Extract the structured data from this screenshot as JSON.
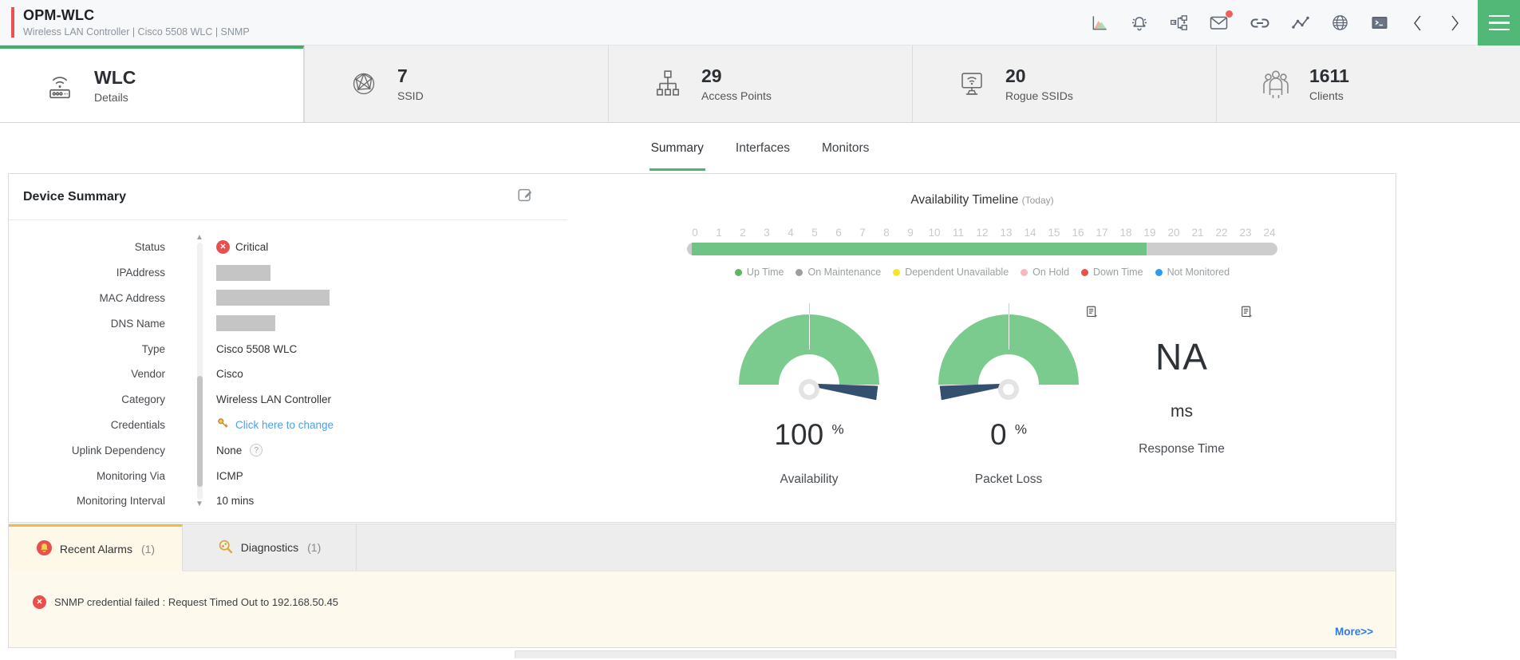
{
  "header": {
    "title": "OPM-WLC",
    "subtitle": "Wireless LAN Controller | Cisco 5508 WLC  | SNMP",
    "toolbar_icons": [
      "area-chart",
      "alarms-bell",
      "workflow",
      "inbox-mail",
      "connect-link",
      "performance-graph",
      "web-globe",
      "terminal",
      "previous-device",
      "next-device",
      "menu"
    ],
    "mail_badge": true,
    "accent_green": "#52b878",
    "accent_red": "#e85352"
  },
  "cards": [
    {
      "icon": "wlc-device-icon",
      "value": "WLC",
      "label": "Details",
      "active": true
    },
    {
      "icon": "ssid-globe-icon",
      "value": "7",
      "label": "SSID"
    },
    {
      "icon": "access-points-tree-icon",
      "value": "29",
      "label": "Access Points"
    },
    {
      "icon": "rogue-ssid-monitor-icon",
      "value": "20",
      "label": "Rogue SSIDs"
    },
    {
      "icon": "clients-group-icon",
      "value": "1611",
      "label": "Clients"
    }
  ],
  "subtabs": {
    "items": [
      {
        "label": "Summary",
        "active": true
      },
      {
        "label": "Interfaces",
        "active": false
      },
      {
        "label": "Monitors",
        "active": false
      }
    ]
  },
  "device_summary": {
    "title": "Device Summary",
    "help_badge": "?",
    "fields": [
      {
        "label": "Status",
        "type": "status",
        "value": "Critical"
      },
      {
        "label": "IPAddress",
        "type": "redacted",
        "value": ""
      },
      {
        "label": "MAC Address",
        "type": "redacted",
        "value": ""
      },
      {
        "label": "DNS Name",
        "type": "redacted",
        "value": ""
      },
      {
        "label": "Type",
        "type": "text",
        "value": "Cisco 5508 WLC"
      },
      {
        "label": "Vendor",
        "type": "text",
        "value": "Cisco"
      },
      {
        "label": "Category",
        "type": "text",
        "value": "Wireless LAN Controller"
      },
      {
        "label": "Credentials",
        "type": "link",
        "value": "Click here to change"
      },
      {
        "label": "Uplink Dependency",
        "type": "help",
        "value": "None"
      },
      {
        "label": "Monitoring Via",
        "type": "text",
        "value": "ICMP"
      },
      {
        "label": "Monitoring Interval",
        "type": "text",
        "value": "10 mins"
      }
    ]
  },
  "availability": {
    "title": "Availability Timeline",
    "period": "(Today)",
    "hours": [
      "0",
      "1",
      "2",
      "3",
      "4",
      "5",
      "6",
      "7",
      "8",
      "9",
      "10",
      "11",
      "12",
      "13",
      "14",
      "15",
      "16",
      "17",
      "18",
      "19",
      "20",
      "21",
      "22",
      "23",
      "24"
    ],
    "uptime_percent": 77,
    "bar_track_color": "#cdcdcd",
    "bar_fill_color": "#6fc485",
    "legend": [
      {
        "label": "Up Time",
        "color": "#5cb85c"
      },
      {
        "label": "On Maintenance",
        "color": "#9e9e9e"
      },
      {
        "label": "Dependent Unavailable",
        "color": "#f5e62b"
      },
      {
        "label": "On Hold",
        "color": "#f5b8c0"
      },
      {
        "label": "Down Time",
        "color": "#e4504e"
      },
      {
        "label": "Not Monitored",
        "color": "#2e9bf0"
      }
    ]
  },
  "gauges": [
    {
      "value": "100",
      "unit": "%",
      "label": "Availability",
      "arc_color": "#7ccb8e"
    },
    {
      "value": "0",
      "unit": "%",
      "label": "Packet Loss",
      "arc_color": "#7ccb8e"
    },
    {
      "value": "NA",
      "unit": "ms",
      "label": "Response Time"
    }
  ],
  "alarm_section": {
    "tabs": [
      {
        "label": "Recent Alarms",
        "count": "(1)",
        "active": true
      },
      {
        "label": "Diagnostics",
        "count": "(1)",
        "active": false
      }
    ],
    "alarm_message": "SNMP credential failed : Request Timed Out to 192.168.50.45",
    "more_label": "More>>"
  }
}
